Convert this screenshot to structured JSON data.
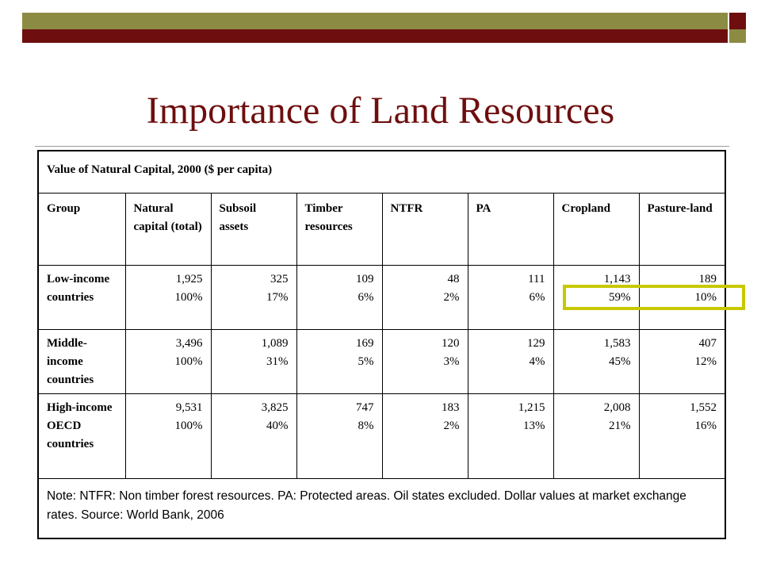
{
  "page": {
    "title": "Importance of Land Resources",
    "accent_colors": {
      "maroon": "#6e0e0e",
      "olive": "#8b8b43",
      "highlight": "#c8c800"
    }
  },
  "table": {
    "caption": "Value of Natural Capital, 2000 ($ per capita)",
    "headers": [
      "Group",
      "Natural capital (total)",
      "Subsoil assets",
      "Timber resources",
      "NTFR",
      "PA",
      "Cropland",
      "Pasture-land"
    ],
    "rows": [
      {
        "group": "Low-income countries",
        "cells": [
          {
            "value": "1,925",
            "share": "100%"
          },
          {
            "value": "325",
            "share": "17%"
          },
          {
            "value": "109",
            "share": "6%"
          },
          {
            "value": "48",
            "share": "2%"
          },
          {
            "value": "111",
            "share": "6%"
          },
          {
            "value": "1,143",
            "share": "59%"
          },
          {
            "value": "189",
            "share": "10%"
          }
        ]
      },
      {
        "group": "Middle-income countries",
        "cells": [
          {
            "value": "3,496",
            "share": "100%"
          },
          {
            "value": "1,089",
            "share": "31%"
          },
          {
            "value": "169",
            "share": "5%"
          },
          {
            "value": "120",
            "share": "3%"
          },
          {
            "value": "129",
            "share": "4%"
          },
          {
            "value": "1,583",
            "share": "45%"
          },
          {
            "value": "407",
            "share": "12%"
          }
        ]
      },
      {
        "group": "High-income OECD countries",
        "cells": [
          {
            "value": "9,531",
            "share": "100%"
          },
          {
            "value": "3,825",
            "share": "40%"
          },
          {
            "value": "747",
            "share": "8%"
          },
          {
            "value": "183",
            "share": "2%"
          },
          {
            "value": "1,215",
            "share": "13%"
          },
          {
            "value": "2,008",
            "share": "21%"
          },
          {
            "value": "1,552",
            "share": "16%"
          }
        ]
      }
    ],
    "note": "Note: NTFR: Non timber forest resources. PA: Protected areas. Oil states excluded. Dollar values at market exchange rates. Source: World Bank, 2006"
  }
}
